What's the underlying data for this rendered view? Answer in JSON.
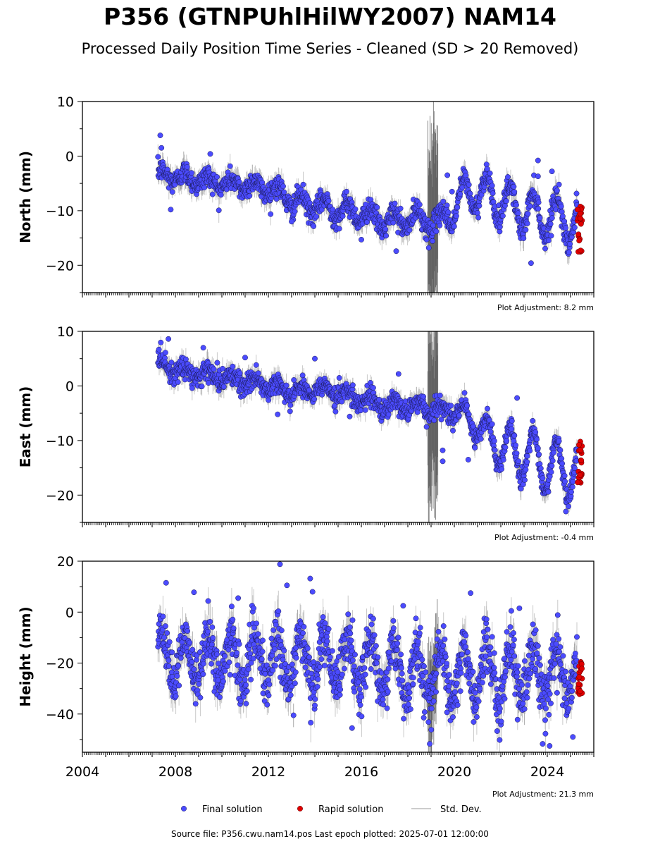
{
  "header": {
    "title": "P356 (GTNPUhlHilWY2007) NAM14",
    "subtitle": "Processed Daily Position Time Series - Cleaned (SD > 20 Removed)"
  },
  "footer": {
    "source": "Source file: P356.cwu.nam14.pos  Last epoch plotted: 2025-07-01 12:00:00"
  },
  "legend": {
    "final": "Final solution",
    "rapid": "Rapid solution",
    "std": "Std. Dev."
  },
  "colors": {
    "final": "#4b4bff",
    "rapid": "#e00000",
    "std": "#bbbbbb",
    "std_dark": "#555555"
  },
  "chart_data": [
    {
      "type": "scatter",
      "ylabel": "North (mm)",
      "adjustment": "Plot Adjustment: 8.2 mm",
      "xlim": [
        2004,
        2026
      ],
      "ylim": [
        -25,
        10
      ],
      "yticks": [
        -20,
        -10,
        0,
        10
      ],
      "xticks": [
        2004,
        2008,
        2012,
        2016,
        2020,
        2024
      ],
      "trend": [
        [
          2007.3,
          -3.5
        ],
        [
          2008.5,
          -4.0
        ],
        [
          2010.0,
          -5.0
        ],
        [
          2011.5,
          -5.5
        ],
        [
          2012.5,
          -6.5
        ],
        [
          2013.0,
          -8.5
        ],
        [
          2014.5,
          -9.5
        ],
        [
          2016.0,
          -10.5
        ],
        [
          2017.0,
          -12.0
        ],
        [
          2018.5,
          -11.5
        ],
        [
          2019.3,
          -12.5
        ],
        [
          2020.0,
          -9.0
        ],
        [
          2021.0,
          -6.0
        ],
        [
          2022.0,
          -8.5
        ],
        [
          2023.0,
          -10.0
        ],
        [
          2024.0,
          -11.0
        ],
        [
          2025.3,
          -12.0
        ]
      ],
      "seasonal_amplitude": [
        [
          2007.3,
          1.0
        ],
        [
          2012.9,
          1.0
        ],
        [
          2013.0,
          1.6
        ],
        [
          2019.3,
          1.6
        ],
        [
          2020.0,
          3.5
        ],
        [
          2025.3,
          4.2
        ]
      ],
      "scatter": 1.0,
      "outliers": [
        [
          2007.35,
          3.8
        ],
        [
          2007.4,
          1.5
        ],
        [
          2007.8,
          -9.8
        ],
        [
          2009.5,
          0.4
        ],
        [
          2013.0,
          -12.0
        ],
        [
          2015.2,
          -11.0
        ],
        [
          2016.0,
          -15.3
        ],
        [
          2017.5,
          -17.4
        ],
        [
          2018.9,
          -16.8
        ],
        [
          2019.7,
          -3.5
        ],
        [
          2019.9,
          -6.5
        ],
        [
          2023.3,
          -19.6
        ],
        [
          2023.6,
          -0.8
        ],
        [
          2023.6,
          -3.7
        ],
        [
          2024.2,
          -2.8
        ]
      ],
      "rapid": {
        "x": [
          2025.3,
          2025.5
        ],
        "y": [
          -18,
          -9
        ]
      }
    },
    {
      "type": "scatter",
      "ylabel": "East (mm)",
      "adjustment": "Plot Adjustment: -0.4 mm",
      "xlim": [
        2004,
        2026
      ],
      "ylim": [
        -25,
        10
      ],
      "yticks": [
        -20,
        -10,
        0,
        10
      ],
      "xticks": [
        2004,
        2008,
        2012,
        2016,
        2020,
        2024
      ],
      "trend": [
        [
          2007.3,
          3.5
        ],
        [
          2008.5,
          2.5
        ],
        [
          2010.0,
          1.5
        ],
        [
          2011.5,
          0.5
        ],
        [
          2013.0,
          -1.0
        ],
        [
          2014.5,
          -0.5
        ],
        [
          2015.5,
          -2.0
        ],
        [
          2017.0,
          -3.5
        ],
        [
          2018.5,
          -4.0
        ],
        [
          2019.5,
          -4.5
        ],
        [
          2020.3,
          -5.0
        ],
        [
          2021.3,
          -8.5
        ],
        [
          2022.3,
          -12.0
        ],
        [
          2023.3,
          -13.0
        ],
        [
          2024.3,
          -15.0
        ],
        [
          2025.3,
          -15.5
        ]
      ],
      "seasonal_amplitude": [
        [
          2007.3,
          1.0
        ],
        [
          2019.8,
          1.0
        ],
        [
          2020.3,
          1.5
        ],
        [
          2021.3,
          3.0
        ],
        [
          2022.3,
          4.5
        ],
        [
          2025.3,
          5.5
        ]
      ],
      "scatter": 0.9,
      "outliers": [
        [
          2007.7,
          8.6
        ],
        [
          2009.2,
          7.0
        ],
        [
          2011.0,
          5.2
        ],
        [
          2012.4,
          -5.2
        ],
        [
          2014.0,
          5.0
        ],
        [
          2015.5,
          -5.6
        ],
        [
          2017.6,
          2.2
        ],
        [
          2019.5,
          -11.8
        ],
        [
          2019.5,
          -13.8
        ],
        [
          2020.6,
          -13.5
        ],
        [
          2022.7,
          -2.2
        ],
        [
          2024.8,
          -23.0
        ]
      ],
      "rapid": {
        "x": [
          2025.3,
          2025.5
        ],
        "y": [
          -18,
          -10
        ]
      }
    },
    {
      "type": "scatter",
      "ylabel": "Height (mm)",
      "adjustment": "Plot Adjustment: 21.3 mm",
      "xlim": [
        2004,
        2026
      ],
      "ylim": [
        -55,
        20
      ],
      "yticks": [
        -40,
        -20,
        0,
        20
      ],
      "xticks": [
        2004,
        2008,
        2012,
        2016,
        2020,
        2024
      ],
      "trend": [
        [
          2007.3,
          -18
        ],
        [
          2012.0,
          -19
        ],
        [
          2016.0,
          -20
        ],
        [
          2019.0,
          -25
        ],
        [
          2022.0,
          -24
        ],
        [
          2025.3,
          -24
        ]
      ],
      "seasonal_amplitude": [
        [
          2007.3,
          10
        ],
        [
          2025.3,
          10
        ]
      ],
      "scatter": 5.0,
      "outliers": [
        [
          2007.6,
          11.5
        ],
        [
          2008.8,
          7.8
        ],
        [
          2010.7,
          5.5
        ],
        [
          2012.5,
          18.8
        ],
        [
          2012.8,
          10.5
        ],
        [
          2013.8,
          13.2
        ],
        [
          2013.9,
          8.0
        ],
        [
          2015.6,
          -45.5
        ],
        [
          2020.7,
          7.5
        ],
        [
          2023.8,
          -51.7
        ],
        [
          2024.1,
          -52.5
        ],
        [
          2025.1,
          -49.0
        ],
        [
          2022.8,
          1.5
        ],
        [
          2017.8,
          2.5
        ]
      ],
      "rapid": {
        "x": [
          2025.3,
          2025.5
        ],
        "y": [
          -33,
          -19
        ]
      }
    }
  ]
}
